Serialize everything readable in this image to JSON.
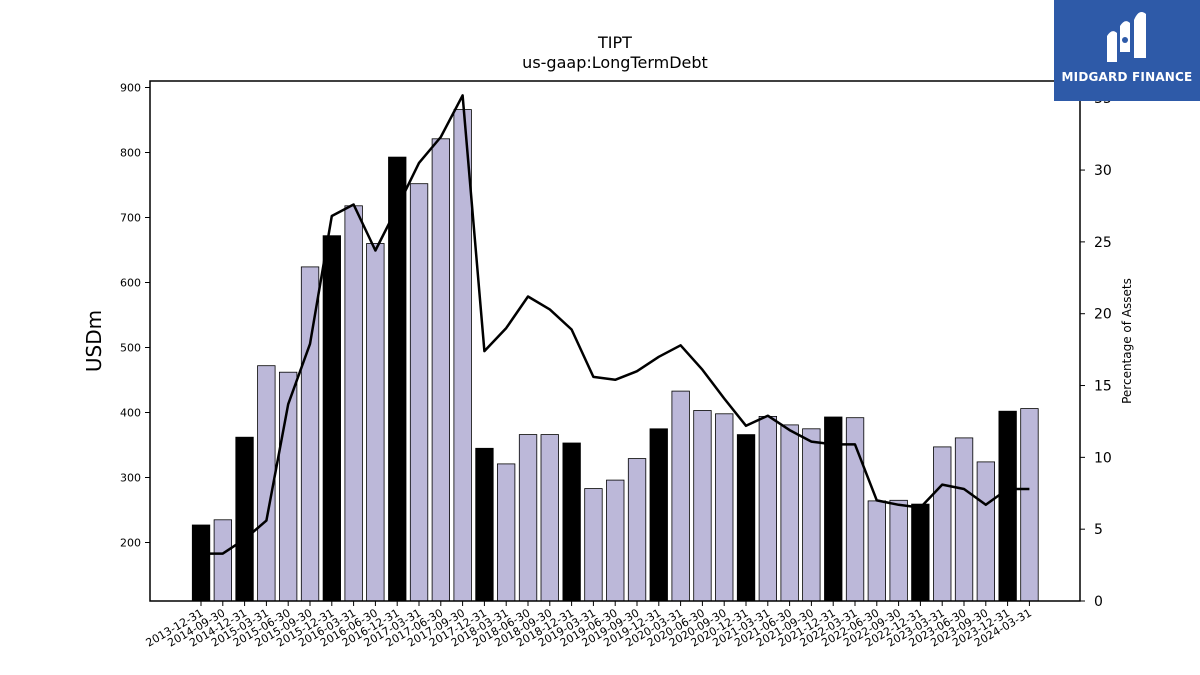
{
  "brand": {
    "name": "MIDGARD FINANCE",
    "logo_icon": "midgard-logo-icon",
    "color": "#2e5aa8"
  },
  "chart_data": {
    "type": "bar",
    "title": "TIPT",
    "subtitle": "us-gaap:LongTermDebt",
    "ylabel": "USDm",
    "y2label": "Percentage of Assets",
    "ylim": [
      110,
      910
    ],
    "y2lim": [
      0,
      36.2
    ],
    "yticks": [
      200,
      300,
      400,
      500,
      600,
      700,
      800,
      900
    ],
    "y2ticks": [
      0,
      5,
      10,
      15,
      20,
      25,
      30,
      35
    ],
    "grid": false,
    "colors": {
      "annual": "#000000",
      "quarterly": "#bcb8d9",
      "line": "#000000"
    },
    "categories": [
      "2013-12-31",
      "2014-09-30",
      "2014-12-31",
      "2015-03-31",
      "2015-06-30",
      "2015-09-30",
      "2015-12-31",
      "2016-03-31",
      "2016-06-30",
      "2016-12-31",
      "2017-03-31",
      "2017-06-30",
      "2017-09-30",
      "2017-12-31",
      "2018-03-31",
      "2018-06-30",
      "2018-09-30",
      "2018-12-31",
      "2019-03-31",
      "2019-06-30",
      "2019-09-30",
      "2019-12-31",
      "2020-03-31",
      "2020-06-30",
      "2020-09-30",
      "2020-12-31",
      "2021-03-31",
      "2021-06-30",
      "2021-09-30",
      "2021-12-31",
      "2022-03-31",
      "2022-06-30",
      "2022-09-30",
      "2022-12-31",
      "2023-03-31",
      "2023-06-30",
      "2023-09-30",
      "2023-12-31",
      "2024-03-31"
    ],
    "series": [
      {
        "kind": "bar",
        "values": [
          227,
          235,
          362,
          472,
          462,
          624,
          672,
          718,
          660,
          793,
          752,
          821,
          866,
          345,
          321,
          366,
          366,
          353,
          283,
          296,
          329,
          375,
          433,
          403,
          398,
          366,
          394,
          381,
          375,
          393,
          392,
          264,
          265,
          259,
          347,
          361,
          324,
          402,
          406
        ],
        "annual": [
          true,
          false,
          true,
          false,
          false,
          false,
          true,
          false,
          false,
          true,
          false,
          false,
          false,
          true,
          false,
          false,
          false,
          true,
          false,
          false,
          false,
          true,
          false,
          false,
          false,
          true,
          false,
          false,
          false,
          true,
          false,
          false,
          false,
          true,
          false,
          false,
          false,
          true,
          false
        ]
      },
      {
        "kind": "line",
        "axis": "right",
        "values": [
          3.3,
          3.3,
          4.3,
          5.6,
          13.7,
          17.9,
          26.8,
          27.6,
          24.4,
          27.4,
          30.5,
          32.3,
          35.2,
          17.4,
          19.0,
          21.2,
          20.3,
          18.9,
          15.6,
          15.4,
          16.0,
          17.0,
          17.8,
          16.1,
          14.1,
          12.2,
          12.9,
          11.9,
          11.1,
          10.9,
          10.9,
          7.0,
          6.7,
          6.5,
          8.1,
          7.8,
          6.7,
          7.8,
          7.8
        ]
      }
    ]
  }
}
